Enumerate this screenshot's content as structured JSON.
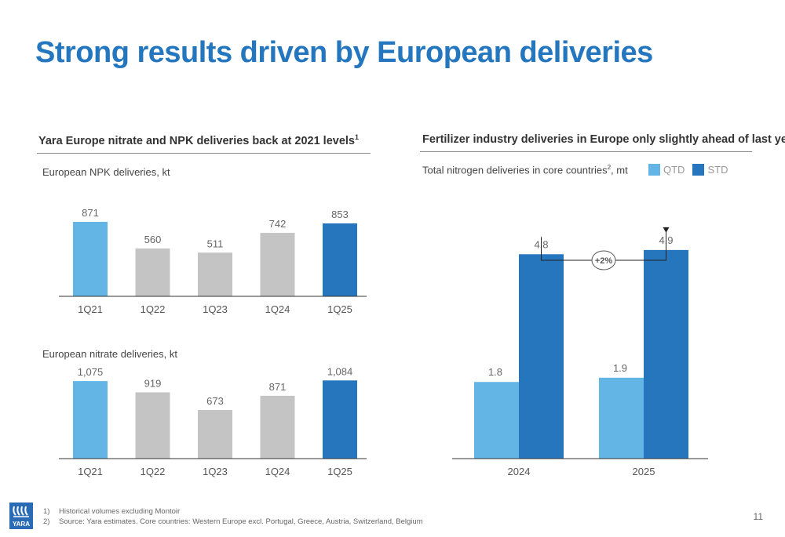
{
  "title": "Strong results driven by European deliveries",
  "left_panel": {
    "heading": "Yara Europe nitrate and NPK deliveries back at 2021 levels",
    "heading_sup": "1"
  },
  "right_panel": {
    "heading": "Fertilizer industry deliveries in Europe only slightly ahead of last year",
    "sublabel": "Total nitrogen deliveries in core countries",
    "sublabel_sup": "2",
    "sublabel_unit": ", mt"
  },
  "colors": {
    "light_blue": "#62b5e5",
    "dark_blue": "#2576bd",
    "grey": "#c4c4c4",
    "title_blue": "#2477bf"
  },
  "chart_data": [
    {
      "type": "bar",
      "title": "European NPK deliveries, kt",
      "categories": [
        "1Q21",
        "1Q22",
        "1Q23",
        "1Q24",
        "1Q25"
      ],
      "values": [
        871,
        560,
        511,
        742,
        853
      ],
      "labels": [
        "871",
        "560",
        "511",
        "742",
        "853"
      ],
      "bar_colors": [
        "#62b5e5",
        "#c4c4c4",
        "#c4c4c4",
        "#c4c4c4",
        "#2576bd"
      ],
      "ylim": [
        0,
        1100
      ],
      "grid": false
    },
    {
      "type": "bar",
      "title": "European nitrate deliveries, kt",
      "categories": [
        "1Q21",
        "1Q22",
        "1Q23",
        "1Q24",
        "1Q25"
      ],
      "values": [
        1075,
        919,
        673,
        871,
        1084
      ],
      "labels": [
        "1,075",
        "919",
        "673",
        "871",
        "1,084"
      ],
      "bar_colors": [
        "#62b5e5",
        "#c4c4c4",
        "#c4c4c4",
        "#c4c4c4",
        "#2576bd"
      ],
      "ylim": [
        0,
        1250
      ],
      "grid": false
    },
    {
      "type": "bar",
      "title": "",
      "categories": [
        "2024",
        "2025"
      ],
      "series": [
        {
          "name": "QTD",
          "values": [
            1.8,
            1.9
          ],
          "labels": [
            "1.8",
            "1.9"
          ],
          "color": "#62b5e5"
        },
        {
          "name": "STD",
          "values": [
            4.8,
            4.9
          ],
          "labels": [
            "4.8",
            "4.9"
          ],
          "color": "#2576bd"
        }
      ],
      "annotation": "+2%",
      "legend": "top-right",
      "ylim": [
        0,
        5.8
      ],
      "grid": false
    }
  ],
  "footnotes": [
    {
      "num": "1)",
      "text": "Historical volumes excluding Montoir"
    },
    {
      "num": "2)",
      "text": "Source: Yara estimates. Core countries: Western Europe excl. Portugal, Greece, Austria, Switzerland, Belgium"
    }
  ],
  "logo_text": "YARA",
  "page_number": "11"
}
